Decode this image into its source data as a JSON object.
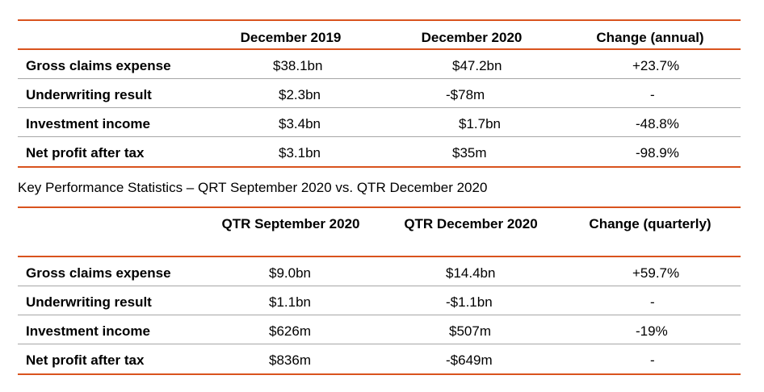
{
  "table_annual": {
    "headers": [
      "",
      "December 2019",
      "December 2020",
      "Change (annual)"
    ],
    "rows": [
      {
        "label": "Gross claims expense",
        "c1": "$38.1bn",
        "c2": "$47.2bn",
        "c3": "+23.7%"
      },
      {
        "label": "Underwriting result",
        "c1": "$2.3bn",
        "c2": "-$78m",
        "c3": "-"
      },
      {
        "label": "Investment income",
        "c1": "$3.4bn",
        "c2": "$1.7bn",
        "c3": "-48.8%"
      },
      {
        "label": "Net profit after tax",
        "c1": "$3.1bn",
        "c2": "$35m",
        "c3": "-98.9%"
      }
    ]
  },
  "caption": "Key Performance Statistics – QRT September 2020 vs. QTR December 2020",
  "table_quarterly": {
    "headers": [
      "",
      "QTR September 2020",
      "QTR December 2020",
      "Change (quarterly)"
    ],
    "rows": [
      {
        "label": "Gross claims expense",
        "c1": "$9.0bn",
        "c2": "$14.4bn",
        "c3": "+59.7%"
      },
      {
        "label": "Underwriting result",
        "c1": "$1.1bn",
        "c2": "-$1.1bn",
        "c3": "-"
      },
      {
        "label": "Investment income",
        "c1": "$626m",
        "c2": "$507m",
        "c3": "-19%"
      },
      {
        "label": "Net profit after tax",
        "c1": "$836m",
        "c2": "-$649m",
        "c3": "-"
      }
    ]
  },
  "colors": {
    "accent_rule": "#d9531e",
    "divider": "#a6a6a6"
  }
}
